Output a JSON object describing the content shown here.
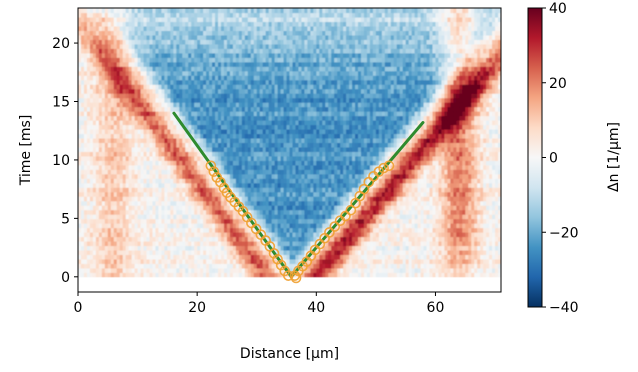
{
  "chart_data": {
    "type": "heatmap",
    "xlabel": "Distance [µm]",
    "ylabel": "Time [ms]",
    "xlim": [
      0,
      71
    ],
    "ylim": [
      -1.3,
      23
    ],
    "xticks": [
      0,
      20,
      40,
      60
    ],
    "yticks": [
      0,
      5,
      10,
      15,
      20
    ],
    "colorbar": {
      "label": "Δn [1/µm]",
      "range": [
        -40,
        40
      ],
      "ticks": [
        40,
        20,
        0,
        -20,
        -40
      ],
      "tick_labels": [
        "40",
        "20",
        "0",
        "−20",
        "−40"
      ],
      "colormap": [
        "#053061",
        "#2166ac",
        "#4393c3",
        "#92c5de",
        "#d1e5f0",
        "#f7f7f7",
        "#fddbc7",
        "#f4a582",
        "#d6604d",
        "#b2182b",
        "#67001f"
      ]
    },
    "heatmap_extent": {
      "x": [
        0,
        71
      ],
      "y": [
        0,
        23
      ]
    },
    "fit_lines": [
      {
        "color": "#2e8b2e",
        "points": [
          [
            16.1,
            14.0
          ],
          [
            35.8,
            0
          ]
        ]
      },
      {
        "color": "#2e8b2e",
        "points": [
          [
            35.8,
            0
          ],
          [
            57.9,
            13.2
          ]
        ]
      }
    ],
    "markers": {
      "color": "#f0a030",
      "points": [
        [
          22.3,
          9.5
        ],
        [
          22.8,
          9.0
        ],
        [
          23.3,
          8.5
        ],
        [
          23.9,
          8.1
        ],
        [
          24.5,
          7.6
        ],
        [
          25.0,
          7.2
        ],
        [
          25.6,
          6.8
        ],
        [
          26.3,
          6.4
        ],
        [
          27.0,
          6.0
        ],
        [
          27.7,
          5.6
        ],
        [
          28.4,
          5.1
        ],
        [
          29.1,
          4.6
        ],
        [
          29.9,
          4.1
        ],
        [
          30.7,
          3.6
        ],
        [
          31.5,
          3.1
        ],
        [
          32.2,
          2.6
        ],
        [
          32.9,
          2.0
        ],
        [
          33.5,
          1.5
        ],
        [
          34.1,
          1.0
        ],
        [
          34.7,
          0.5
        ],
        [
          35.3,
          0.1
        ],
        [
          36.4,
          0.1
        ],
        [
          37.0,
          0.5
        ],
        [
          37.7,
          0.9
        ],
        [
          38.4,
          1.3
        ],
        [
          39.1,
          1.8
        ],
        [
          39.8,
          2.3
        ],
        [
          40.6,
          2.8
        ],
        [
          41.4,
          3.3
        ],
        [
          42.2,
          3.8
        ],
        [
          43.1,
          4.3
        ],
        [
          44.0,
          4.8
        ],
        [
          44.9,
          5.2
        ],
        [
          45.8,
          5.7
        ],
        [
          46.6,
          6.3
        ],
        [
          47.3,
          6.9
        ],
        [
          48.0,
          7.5
        ],
        [
          48.8,
          8.1
        ],
        [
          49.6,
          8.6
        ],
        [
          50.5,
          9.0
        ],
        [
          51.3,
          9.3
        ],
        [
          52.2,
          9.5
        ],
        [
          36.6,
          -0.1
        ]
      ]
    }
  }
}
